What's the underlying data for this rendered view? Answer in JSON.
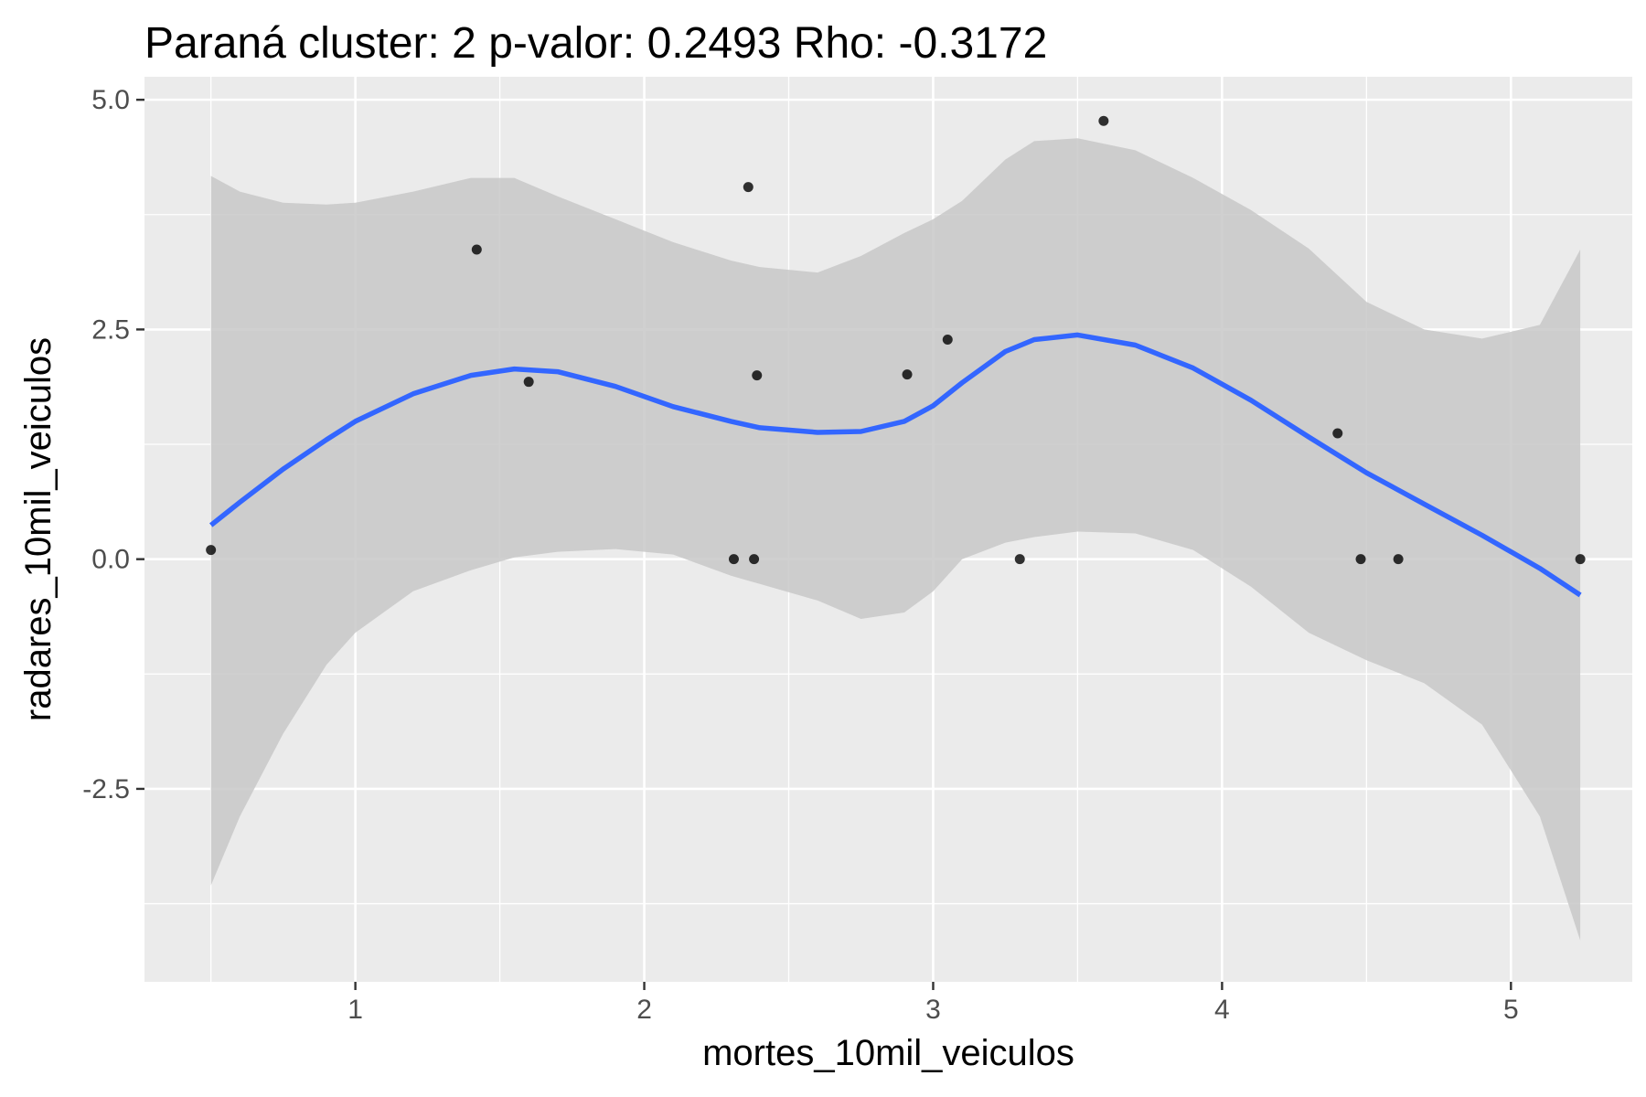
{
  "chart_data": {
    "type": "scatter",
    "title": "Paraná cluster: 2 p-valor: 0.2493 Rho: -0.3172",
    "xlabel": "mortes_10mil_veiculos",
    "ylabel": "radares_10mil_veiculos",
    "xlim": [
      0.27,
      5.42
    ],
    "ylim": [
      -4.6,
      5.25
    ],
    "x_ticks": [
      1,
      2,
      3,
      4,
      5
    ],
    "x_tick_labels": [
      "1",
      "2",
      "3",
      "4",
      "5"
    ],
    "y_ticks": [
      -2.5,
      0.0,
      2.5,
      5.0
    ],
    "y_tick_labels": [
      "-2.5",
      "0.0",
      "2.5",
      "5.0"
    ],
    "grid": true,
    "legend": "none",
    "colors": {
      "panel_background": "#ebebeb",
      "grid": "#ffffff",
      "points": "#000000",
      "smooth_line": "#3366ff",
      "confidence_band": "#c8c8c8"
    },
    "points": [
      {
        "x": 0.5,
        "y": 0.1
      },
      {
        "x": 1.42,
        "y": 3.37
      },
      {
        "x": 1.6,
        "y": 1.93
      },
      {
        "x": 2.31,
        "y": 0.0
      },
      {
        "x": 2.36,
        "y": 4.05
      },
      {
        "x": 2.38,
        "y": 0.0
      },
      {
        "x": 2.39,
        "y": 2.0
      },
      {
        "x": 2.91,
        "y": 2.01
      },
      {
        "x": 3.05,
        "y": 2.39
      },
      {
        "x": 3.3,
        "y": 0.0
      },
      {
        "x": 3.59,
        "y": 4.77
      },
      {
        "x": 4.4,
        "y": 1.37
      },
      {
        "x": 4.48,
        "y": 0.0
      },
      {
        "x": 4.61,
        "y": 0.0
      },
      {
        "x": 5.24,
        "y": 0.0
      }
    ],
    "smooth": {
      "x": [
        0.5,
        0.6,
        0.75,
        0.9,
        1.0,
        1.2,
        1.4,
        1.55,
        1.7,
        1.9,
        2.1,
        2.3,
        2.4,
        2.6,
        2.75,
        2.9,
        3.0,
        3.1,
        3.25,
        3.35,
        3.5,
        3.7,
        3.9,
        4.1,
        4.3,
        4.5,
        4.7,
        4.9,
        5.1,
        5.24
      ],
      "y": [
        0.37,
        0.62,
        0.98,
        1.3,
        1.5,
        1.8,
        2.0,
        2.07,
        2.04,
        1.88,
        1.66,
        1.5,
        1.43,
        1.38,
        1.39,
        1.5,
        1.67,
        1.92,
        2.26,
        2.39,
        2.44,
        2.33,
        2.08,
        1.73,
        1.33,
        0.94,
        0.6,
        0.26,
        -0.1,
        -0.39
      ],
      "lower": [
        -3.55,
        -2.8,
        -1.9,
        -1.15,
        -0.8,
        -0.35,
        -0.12,
        0.02,
        0.08,
        0.11,
        0.05,
        -0.18,
        -0.27,
        -0.45,
        -0.65,
        -0.58,
        -0.35,
        0.0,
        0.18,
        0.24,
        0.3,
        0.28,
        0.1,
        -0.3,
        -0.8,
        -1.1,
        -1.35,
        -1.8,
        -2.8,
        -4.15
      ],
      "upper": [
        4.17,
        4.0,
        3.88,
        3.86,
        3.88,
        4.0,
        4.15,
        4.15,
        3.95,
        3.7,
        3.45,
        3.25,
        3.18,
        3.12,
        3.3,
        3.55,
        3.7,
        3.9,
        4.35,
        4.55,
        4.58,
        4.45,
        4.15,
        3.8,
        3.38,
        2.8,
        2.5,
        2.4,
        2.55,
        3.37
      ]
    }
  }
}
